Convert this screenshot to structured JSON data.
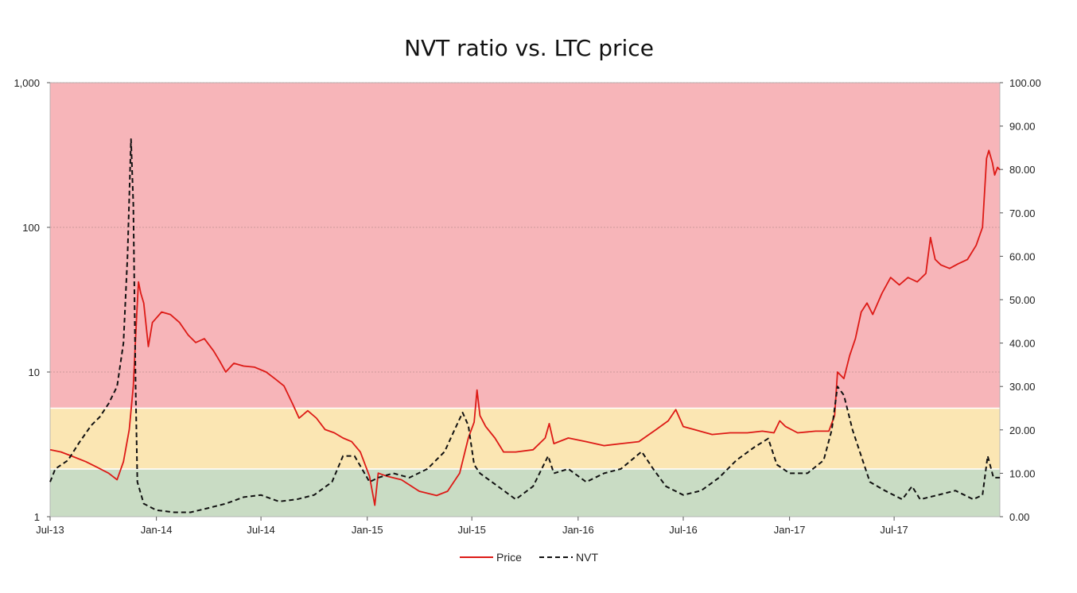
{
  "chart_data": {
    "type": "line",
    "title": "NVT ratio vs. LTC price",
    "xlabel": "",
    "ylabel_left": "",
    "ylabel_right": "",
    "x_ticks": [
      "Jul-13",
      "Jan-14",
      "Jul-14",
      "Jan-15",
      "Jul-15",
      "Jan-16",
      "Jul-16",
      "Jan-17",
      "Jul-17"
    ],
    "left_axis": {
      "scale": "log",
      "range": [
        1,
        1000
      ],
      "ticks": [
        "1",
        "10",
        "100",
        "1,000"
      ]
    },
    "right_axis": {
      "scale": "linear",
      "range": [
        0,
        100
      ],
      "ticks": [
        "0.00",
        "10.00",
        "20.00",
        "30.00",
        "40.00",
        "50.00",
        "60.00",
        "70.00",
        "80.00",
        "90.00",
        "100.00"
      ]
    },
    "x_range": [
      "2013-07-01",
      "2017-12-31"
    ],
    "bands": [
      {
        "from": 0,
        "to": 11,
        "axis": "right",
        "color": "#c9dcc4"
      },
      {
        "from": 11,
        "to": 25,
        "axis": "right",
        "color": "#fbe6b3"
      },
      {
        "from": 25,
        "to": 100,
        "axis": "right",
        "color": "#f7b5b9"
      }
    ],
    "grid": "horizontal at left-axis decades",
    "legend": {
      "position": "bottom",
      "entries": [
        "Price",
        "NVT"
      ]
    },
    "series": [
      {
        "name": "Price",
        "axis": "left",
        "color": "#dd1a16",
        "style": "solid",
        "points": [
          [
            "2013-07-01",
            2.9
          ],
          [
            "2013-07-20",
            2.8
          ],
          [
            "2013-08-10",
            2.6
          ],
          [
            "2013-09-01",
            2.4
          ],
          [
            "2013-09-20",
            2.2
          ],
          [
            "2013-10-10",
            2.0
          ],
          [
            "2013-10-25",
            1.8
          ],
          [
            "2013-11-05",
            2.4
          ],
          [
            "2013-11-15",
            4.0
          ],
          [
            "2013-11-22",
            8.0
          ],
          [
            "2013-11-28",
            25.0
          ],
          [
            "2013-12-01",
            42.0
          ],
          [
            "2013-12-05",
            35.0
          ],
          [
            "2013-12-10",
            30.0
          ],
          [
            "2013-12-18",
            15.0
          ],
          [
            "2013-12-25",
            22.0
          ],
          [
            "2014-01-10",
            26.0
          ],
          [
            "2014-01-25",
            25.0
          ],
          [
            "2014-02-10",
            22.0
          ],
          [
            "2014-02-25",
            18.0
          ],
          [
            "2014-03-10",
            16.0
          ],
          [
            "2014-03-25",
            17.0
          ],
          [
            "2014-04-10",
            14.0
          ],
          [
            "2014-04-20",
            12.0
          ],
          [
            "2014-05-01",
            10.0
          ],
          [
            "2014-05-15",
            11.5
          ],
          [
            "2014-06-01",
            11.0
          ],
          [
            "2014-06-20",
            10.8
          ],
          [
            "2014-07-10",
            10.0
          ],
          [
            "2014-07-25",
            9.0
          ],
          [
            "2014-08-10",
            8.0
          ],
          [
            "2014-08-25",
            6.0
          ],
          [
            "2014-09-05",
            4.8
          ],
          [
            "2014-09-20",
            5.4
          ],
          [
            "2014-10-05",
            4.8
          ],
          [
            "2014-10-20",
            4.0
          ],
          [
            "2014-11-05",
            3.8
          ],
          [
            "2014-11-20",
            3.5
          ],
          [
            "2014-12-05",
            3.3
          ],
          [
            "2014-12-20",
            2.8
          ],
          [
            "2015-01-05",
            1.9
          ],
          [
            "2015-01-14",
            1.2
          ],
          [
            "2015-01-20",
            2.0
          ],
          [
            "2015-02-05",
            1.9
          ],
          [
            "2015-03-01",
            1.8
          ],
          [
            "2015-04-01",
            1.5
          ],
          [
            "2015-05-01",
            1.4
          ],
          [
            "2015-05-20",
            1.5
          ],
          [
            "2015-06-10",
            2.0
          ],
          [
            "2015-06-25",
            3.5
          ],
          [
            "2015-07-05",
            4.5
          ],
          [
            "2015-07-10",
            7.5
          ],
          [
            "2015-07-15",
            5.0
          ],
          [
            "2015-07-25",
            4.2
          ],
          [
            "2015-08-10",
            3.5
          ],
          [
            "2015-08-25",
            2.8
          ],
          [
            "2015-09-15",
            2.8
          ],
          [
            "2015-10-15",
            2.9
          ],
          [
            "2015-11-05",
            3.5
          ],
          [
            "2015-11-12",
            4.4
          ],
          [
            "2015-11-20",
            3.2
          ],
          [
            "2015-12-15",
            3.5
          ],
          [
            "2016-01-15",
            3.3
          ],
          [
            "2016-02-15",
            3.1
          ],
          [
            "2016-03-15",
            3.2
          ],
          [
            "2016-04-15",
            3.3
          ],
          [
            "2016-05-15",
            4.0
          ],
          [
            "2016-06-05",
            4.6
          ],
          [
            "2016-06-18",
            5.5
          ],
          [
            "2016-07-01",
            4.2
          ],
          [
            "2016-07-20",
            4.0
          ],
          [
            "2016-08-20",
            3.7
          ],
          [
            "2016-09-20",
            3.8
          ],
          [
            "2016-10-20",
            3.8
          ],
          [
            "2016-11-15",
            3.9
          ],
          [
            "2016-12-05",
            3.8
          ],
          [
            "2016-12-15",
            4.6
          ],
          [
            "2016-12-25",
            4.2
          ],
          [
            "2017-01-15",
            3.8
          ],
          [
            "2017-02-15",
            3.9
          ],
          [
            "2017-03-10",
            3.9
          ],
          [
            "2017-03-20",
            5.0
          ],
          [
            "2017-03-25",
            10.0
          ],
          [
            "2017-04-05",
            9.0
          ],
          [
            "2017-04-15",
            13.0
          ],
          [
            "2017-04-25",
            17.0
          ],
          [
            "2017-05-05",
            26.0
          ],
          [
            "2017-05-15",
            30.0
          ],
          [
            "2017-05-25",
            25.0
          ],
          [
            "2017-06-10",
            35.0
          ],
          [
            "2017-06-25",
            45.0
          ],
          [
            "2017-07-10",
            40.0
          ],
          [
            "2017-07-25",
            45.0
          ],
          [
            "2017-08-10",
            42.0
          ],
          [
            "2017-08-25",
            48.0
          ],
          [
            "2017-09-02",
            85.0
          ],
          [
            "2017-09-10",
            60.0
          ],
          [
            "2017-09-20",
            55.0
          ],
          [
            "2017-10-05",
            52.0
          ],
          [
            "2017-10-20",
            56.0
          ],
          [
            "2017-11-05",
            60.0
          ],
          [
            "2017-11-20",
            75.0
          ],
          [
            "2017-12-01",
            100.0
          ],
          [
            "2017-12-08",
            300.0
          ],
          [
            "2017-12-12",
            340.0
          ],
          [
            "2017-12-18",
            280.0
          ],
          [
            "2017-12-22",
            230.0
          ],
          [
            "2017-12-27",
            260.0
          ],
          [
            "2017-12-31",
            250.0
          ]
        ]
      },
      {
        "name": "NVT",
        "axis": "right",
        "color": "#111111",
        "style": "dashed",
        "points": [
          [
            "2013-07-01",
            8.0
          ],
          [
            "2013-07-10",
            11.0
          ],
          [
            "2013-08-01",
            13.0
          ],
          [
            "2013-08-20",
            17.0
          ],
          [
            "2013-09-10",
            21.0
          ],
          [
            "2013-09-25",
            23.0
          ],
          [
            "2013-10-10",
            26.0
          ],
          [
            "2013-10-25",
            30.0
          ],
          [
            "2013-11-05",
            40.0
          ],
          [
            "2013-11-12",
            60.0
          ],
          [
            "2013-11-18",
            87.0
          ],
          [
            "2013-11-22",
            72.0
          ],
          [
            "2013-11-26",
            30.0
          ],
          [
            "2013-11-29",
            8.0
          ],
          [
            "2013-12-10",
            3.0
          ],
          [
            "2014-01-01",
            1.5
          ],
          [
            "2014-02-01",
            1.0
          ],
          [
            "2014-03-01",
            1.0
          ],
          [
            "2014-04-01",
            2.0
          ],
          [
            "2014-05-01",
            3.0
          ],
          [
            "2014-06-01",
            4.5
          ],
          [
            "2014-07-01",
            5.0
          ],
          [
            "2014-08-01",
            3.5
          ],
          [
            "2014-09-01",
            4.0
          ],
          [
            "2014-10-01",
            5.0
          ],
          [
            "2014-11-01",
            8.0
          ],
          [
            "2014-11-20",
            14.0
          ],
          [
            "2014-12-10",
            14.0
          ],
          [
            "2015-01-05",
            8.0
          ],
          [
            "2015-01-20",
            9.0
          ],
          [
            "2015-02-15",
            10.0
          ],
          [
            "2015-03-15",
            9.0
          ],
          [
            "2015-04-15",
            11.0
          ],
          [
            "2015-05-15",
            15.0
          ],
          [
            "2015-06-01",
            20.0
          ],
          [
            "2015-06-15",
            24.0
          ],
          [
            "2015-06-25",
            21.0
          ],
          [
            "2015-07-05",
            12.0
          ],
          [
            "2015-07-15",
            10.0
          ],
          [
            "2015-08-15",
            7.0
          ],
          [
            "2015-09-15",
            4.0
          ],
          [
            "2015-10-15",
            7.0
          ],
          [
            "2015-11-10",
            14.0
          ],
          [
            "2015-11-20",
            10.0
          ],
          [
            "2015-12-15",
            11.0
          ],
          [
            "2016-01-15",
            8.0
          ],
          [
            "2016-02-15",
            10.0
          ],
          [
            "2016-03-15",
            11.0
          ],
          [
            "2016-04-20",
            15.0
          ],
          [
            "2016-05-10",
            11.0
          ],
          [
            "2016-06-01",
            7.0
          ],
          [
            "2016-07-01",
            5.0
          ],
          [
            "2016-08-01",
            6.0
          ],
          [
            "2016-09-01",
            9.0
          ],
          [
            "2016-10-01",
            13.0
          ],
          [
            "2016-11-01",
            16.0
          ],
          [
            "2016-11-25",
            18.0
          ],
          [
            "2016-12-10",
            12.0
          ],
          [
            "2017-01-01",
            10.0
          ],
          [
            "2017-02-01",
            10.0
          ],
          [
            "2017-03-01",
            13.0
          ],
          [
            "2017-03-15",
            20.0
          ],
          [
            "2017-03-25",
            30.0
          ],
          [
            "2017-04-05",
            28.0
          ],
          [
            "2017-04-20",
            20.0
          ],
          [
            "2017-05-05",
            14.0
          ],
          [
            "2017-05-20",
            8.0
          ],
          [
            "2017-06-15",
            6.0
          ],
          [
            "2017-07-15",
            4.0
          ],
          [
            "2017-08-01",
            7.0
          ],
          [
            "2017-08-15",
            4.0
          ],
          [
            "2017-09-15",
            5.0
          ],
          [
            "2017-10-15",
            6.0
          ],
          [
            "2017-11-15",
            4.0
          ],
          [
            "2017-12-01",
            5.0
          ],
          [
            "2017-12-10",
            14.0
          ],
          [
            "2017-12-20",
            9.0
          ],
          [
            "2017-12-31",
            9.0
          ]
        ]
      }
    ]
  }
}
